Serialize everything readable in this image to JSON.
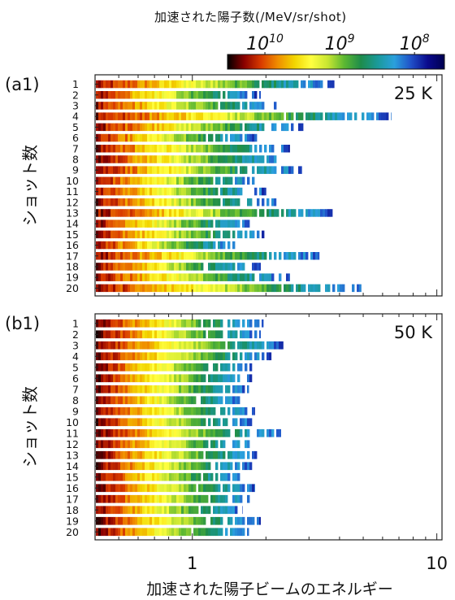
{
  "colorbar": {
    "title": "加速された陽子数(/MeV/sr/shot)",
    "ticks": [
      {
        "value": 10000000000.0,
        "label": "10",
        "exp": "10"
      },
      {
        "value": 1000000000.0,
        "label": "10",
        "exp": "9"
      },
      {
        "value": 100000000.0,
        "label": "10",
        "exp": "8"
      }
    ],
    "log_range": [
      10.5,
      7.6
    ],
    "colors": [
      "#000000",
      "#8a0000",
      "#d83a00",
      "#f08c00",
      "#f2d400",
      "#ffff40",
      "#c8e632",
      "#5cb832",
      "#1e8c4b",
      "#1a9a9a",
      "#2aa0dc",
      "#2050c8",
      "#0a0a8c",
      "#000050"
    ]
  },
  "chart_data": [
    {
      "type": "heatmap",
      "panel_label": "(a1)",
      "annotation": "25 K",
      "ylabel": "ショット数",
      "xscale": "log",
      "xlim": [
        0.4,
        10.5
      ],
      "shots": [
        "1",
        "2",
        "3",
        "4",
        "5",
        "6",
        "7",
        "8",
        "9",
        "10",
        "11",
        "12",
        "13",
        "14",
        "15",
        "16",
        "17",
        "18",
        "19",
        "20"
      ],
      "max_energy_MeV": [
        3.8,
        1.9,
        2.3,
        6.5,
        2.9,
        1.9,
        2.5,
        2.4,
        2.8,
        1.9,
        2.0,
        2.2,
        3.8,
        1.8,
        2.0,
        1.55,
        3.3,
        1.9,
        2.5,
        4.9
      ]
    },
    {
      "type": "heatmap",
      "panel_label": "(b1)",
      "annotation": "50 K",
      "ylabel": "ショット数",
      "xscale": "log",
      "xlim": [
        0.4,
        10.5
      ],
      "shots": [
        "1",
        "2",
        "3",
        "4",
        "5",
        "6",
        "7",
        "8",
        "9",
        "10",
        "11",
        "12",
        "13",
        "14",
        "15",
        "16",
        "17",
        "18",
        "19",
        "20"
      ],
      "max_energy_MeV": [
        1.95,
        1.9,
        2.35,
        2.1,
        1.75,
        1.75,
        1.7,
        1.6,
        1.8,
        1.75,
        2.3,
        1.8,
        1.9,
        1.75,
        1.6,
        1.8,
        1.8,
        1.6,
        1.9,
        1.7
      ]
    }
  ],
  "x_axis": {
    "xlabel": "加速された陽子ビームのエネルギー",
    "tick_labels": [
      {
        "value": 1,
        "label": "1"
      },
      {
        "value": 10,
        "label": "10"
      }
    ]
  }
}
